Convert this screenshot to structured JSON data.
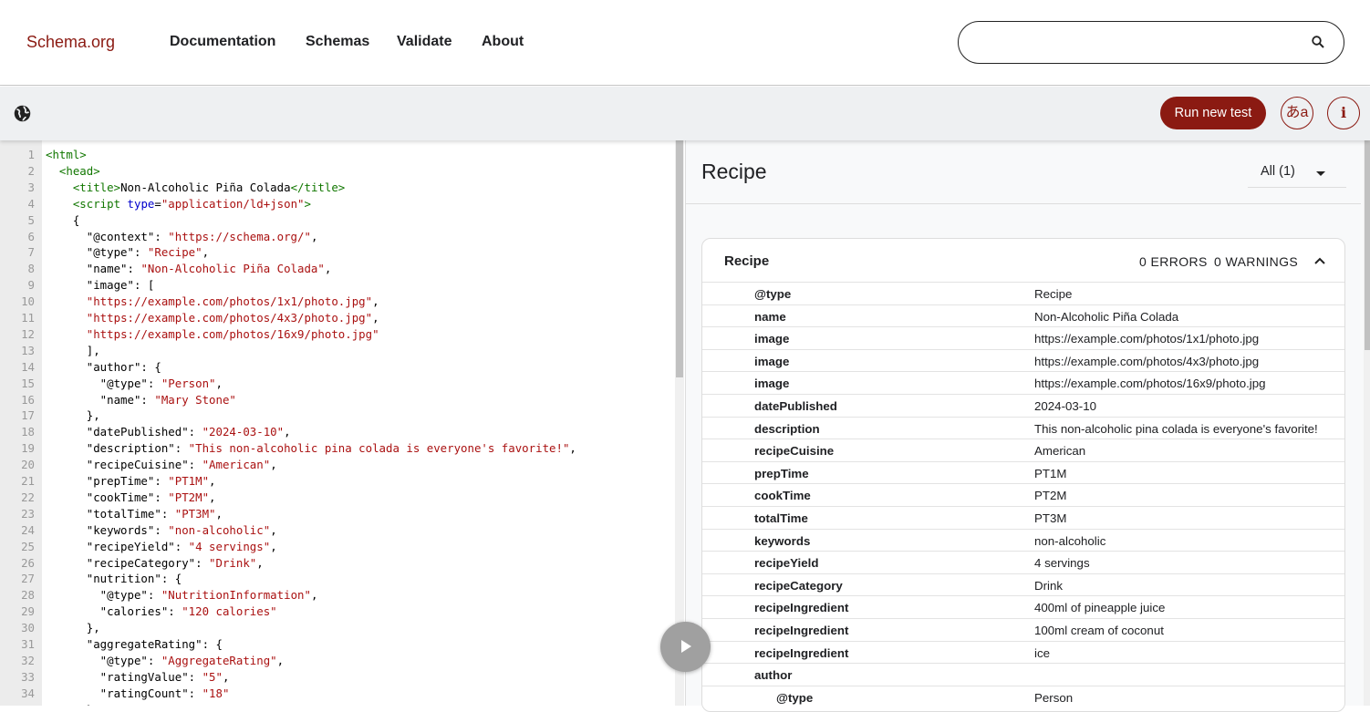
{
  "header": {
    "logo": "Schema.org",
    "nav": [
      "Documentation",
      "Schemas",
      "Validate",
      "About"
    ],
    "search_placeholder": ""
  },
  "toolbar": {
    "run_label": "Run new test",
    "lang_label": "あa",
    "info_label": "i"
  },
  "editor": {
    "lines": [
      [
        [
          "tag",
          "<html>"
        ]
      ],
      [
        [
          "plain",
          "  "
        ],
        [
          "tag",
          "<head>"
        ]
      ],
      [
        [
          "plain",
          "    "
        ],
        [
          "tag",
          "<title>"
        ],
        [
          "plain",
          "Non-Alcoholic Piña Colada"
        ],
        [
          "tag",
          "</title>"
        ]
      ],
      [
        [
          "plain",
          "    "
        ],
        [
          "tag",
          "<script "
        ],
        [
          "attr",
          "type"
        ],
        [
          "plain",
          "="
        ],
        [
          "str",
          "\"application/ld+json\""
        ],
        [
          "tag",
          ">"
        ]
      ],
      [
        [
          "plain",
          "    {"
        ]
      ],
      [
        [
          "plain",
          "      \"@context\": "
        ],
        [
          "str",
          "\"https://schema.org/\""
        ],
        [
          "plain",
          ","
        ]
      ],
      [
        [
          "plain",
          "      \"@type\": "
        ],
        [
          "str",
          "\"Recipe\""
        ],
        [
          "plain",
          ","
        ]
      ],
      [
        [
          "plain",
          "      \"name\": "
        ],
        [
          "str",
          "\"Non-Alcoholic Piña Colada\""
        ],
        [
          "plain",
          ","
        ]
      ],
      [
        [
          "plain",
          "      \"image\": ["
        ]
      ],
      [
        [
          "plain",
          "      "
        ],
        [
          "str",
          "\"https://example.com/photos/1x1/photo.jpg\""
        ],
        [
          "plain",
          ","
        ]
      ],
      [
        [
          "plain",
          "      "
        ],
        [
          "str",
          "\"https://example.com/photos/4x3/photo.jpg\""
        ],
        [
          "plain",
          ","
        ]
      ],
      [
        [
          "plain",
          "      "
        ],
        [
          "str",
          "\"https://example.com/photos/16x9/photo.jpg\""
        ]
      ],
      [
        [
          "plain",
          "      ],"
        ]
      ],
      [
        [
          "plain",
          "      \"author\": {"
        ]
      ],
      [
        [
          "plain",
          "        \"@type\": "
        ],
        [
          "str",
          "\"Person\""
        ],
        [
          "plain",
          ","
        ]
      ],
      [
        [
          "plain",
          "        \"name\": "
        ],
        [
          "str",
          "\"Mary Stone\""
        ]
      ],
      [
        [
          "plain",
          "      },"
        ]
      ],
      [
        [
          "plain",
          "      \"datePublished\": "
        ],
        [
          "str",
          "\"2024-03-10\""
        ],
        [
          "plain",
          ","
        ]
      ],
      [
        [
          "plain",
          "      \"description\": "
        ],
        [
          "str",
          "\"This non-alcoholic pina colada is everyone's favorite!\""
        ],
        [
          "plain",
          ","
        ]
      ],
      [
        [
          "plain",
          "      \"recipeCuisine\": "
        ],
        [
          "str",
          "\"American\""
        ],
        [
          "plain",
          ","
        ]
      ],
      [
        [
          "plain",
          "      \"prepTime\": "
        ],
        [
          "str",
          "\"PT1M\""
        ],
        [
          "plain",
          ","
        ]
      ],
      [
        [
          "plain",
          "      \"cookTime\": "
        ],
        [
          "str",
          "\"PT2M\""
        ],
        [
          "plain",
          ","
        ]
      ],
      [
        [
          "plain",
          "      \"totalTime\": "
        ],
        [
          "str",
          "\"PT3M\""
        ],
        [
          "plain",
          ","
        ]
      ],
      [
        [
          "plain",
          "      \"keywords\": "
        ],
        [
          "str",
          "\"non-alcoholic\""
        ],
        [
          "plain",
          ","
        ]
      ],
      [
        [
          "plain",
          "      \"recipeYield\": "
        ],
        [
          "str",
          "\"4 servings\""
        ],
        [
          "plain",
          ","
        ]
      ],
      [
        [
          "plain",
          "      \"recipeCategory\": "
        ],
        [
          "str",
          "\"Drink\""
        ],
        [
          "plain",
          ","
        ]
      ],
      [
        [
          "plain",
          "      \"nutrition\": {"
        ]
      ],
      [
        [
          "plain",
          "        \"@type\": "
        ],
        [
          "str",
          "\"NutritionInformation\""
        ],
        [
          "plain",
          ","
        ]
      ],
      [
        [
          "plain",
          "        \"calories\": "
        ],
        [
          "str",
          "\"120 calories\""
        ]
      ],
      [
        [
          "plain",
          "      },"
        ]
      ],
      [
        [
          "plain",
          "      \"aggregateRating\": {"
        ]
      ],
      [
        [
          "plain",
          "        \"@type\": "
        ],
        [
          "str",
          "\"AggregateRating\""
        ],
        [
          "plain",
          ","
        ]
      ],
      [
        [
          "plain",
          "        \"ratingValue\": "
        ],
        [
          "str",
          "\"5\""
        ],
        [
          "plain",
          ","
        ]
      ],
      [
        [
          "plain",
          "        \"ratingCount\": "
        ],
        [
          "str",
          "\"18\""
        ]
      ],
      [
        [
          "plain",
          "      },"
        ]
      ]
    ]
  },
  "results": {
    "title": "Recipe",
    "filter": "All (1)",
    "card": {
      "title": "Recipe",
      "errors": "0 ERRORS",
      "warnings": "0 WARNINGS",
      "rows": [
        {
          "k": "@type",
          "v": "Recipe"
        },
        {
          "k": "name",
          "v": "Non-Alcoholic Piña Colada"
        },
        {
          "k": "image",
          "v": "https://example.com/photos/1x1/photo.jpg"
        },
        {
          "k": "image",
          "v": "https://example.com/photos/4x3/photo.jpg"
        },
        {
          "k": "image",
          "v": "https://example.com/photos/16x9/photo.jpg"
        },
        {
          "k": "datePublished",
          "v": "2024-03-10"
        },
        {
          "k": "description",
          "v": "This non-alcoholic pina colada is everyone's favorite!"
        },
        {
          "k": "recipeCuisine",
          "v": "American"
        },
        {
          "k": "prepTime",
          "v": "PT1M"
        },
        {
          "k": "cookTime",
          "v": "PT2M"
        },
        {
          "k": "totalTime",
          "v": "PT3M"
        },
        {
          "k": "keywords",
          "v": "non-alcoholic"
        },
        {
          "k": "recipeYield",
          "v": "4 servings"
        },
        {
          "k": "recipeCategory",
          "v": "Drink"
        },
        {
          "k": "recipeIngredient",
          "v": "400ml of pineapple juice"
        },
        {
          "k": "recipeIngredient",
          "v": "100ml cream of coconut"
        },
        {
          "k": "recipeIngredient",
          "v": "ice"
        },
        {
          "k": "author",
          "v": ""
        },
        {
          "k": "@type",
          "v": "Person",
          "nested": true
        }
      ]
    }
  },
  "colors": {
    "brand": "#8b1a12",
    "tag": "#117700",
    "attr": "#0000cc",
    "string": "#aa1111"
  }
}
